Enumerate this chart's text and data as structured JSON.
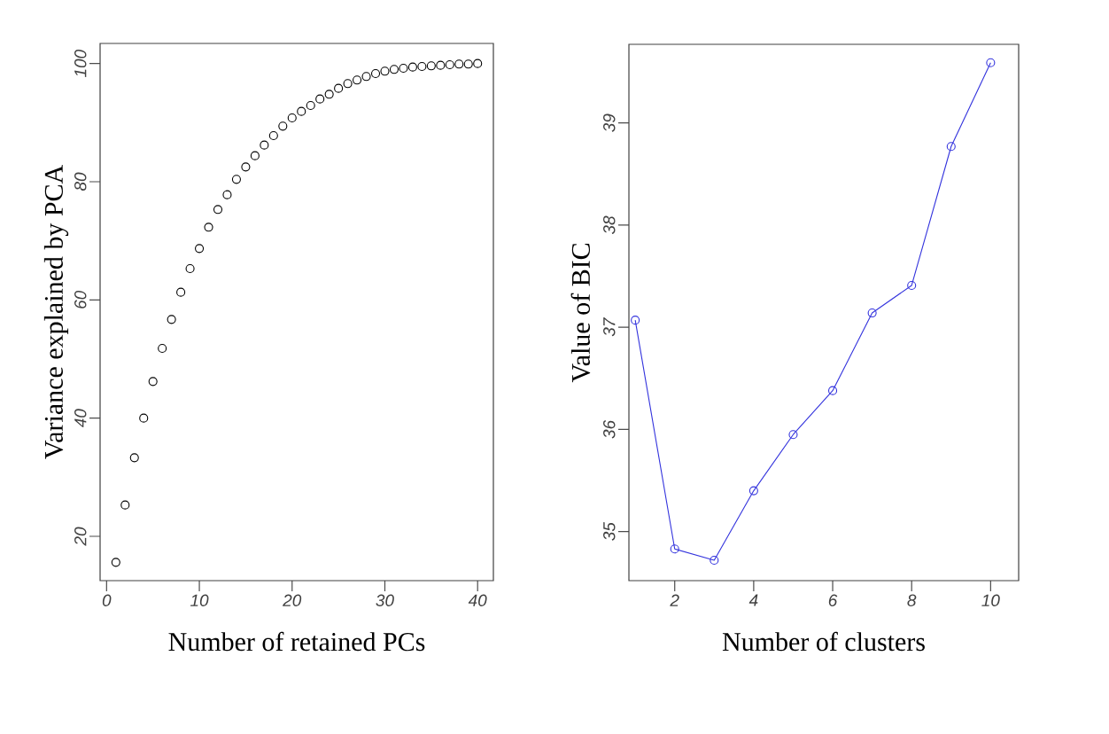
{
  "chart_data": [
    {
      "type": "scatter",
      "xlabel": "Number of retained PCs",
      "ylabel": "Variance explained by PCA",
      "x": [
        1,
        2,
        3,
        4,
        5,
        6,
        7,
        8,
        9,
        10,
        11,
        12,
        13,
        14,
        15,
        16,
        17,
        18,
        19,
        20,
        21,
        22,
        23,
        24,
        25,
        26,
        27,
        28,
        29,
        30,
        31,
        32,
        33,
        34,
        35,
        36,
        37,
        38,
        39,
        40
      ],
      "values": [
        15.6,
        25.3,
        33.3,
        40.0,
        46.2,
        51.8,
        56.7,
        61.3,
        65.3,
        68.7,
        72.3,
        75.3,
        77.8,
        80.4,
        82.5,
        84.4,
        86.2,
        87.8,
        89.4,
        90.8,
        91.9,
        92.9,
        94.0,
        94.8,
        95.8,
        96.6,
        97.2,
        97.8,
        98.3,
        98.7,
        99.0,
        99.2,
        99.4,
        99.5,
        99.6,
        99.7,
        99.8,
        99.9,
        99.9,
        100.0
      ],
      "color": "#000000",
      "marker": "circle",
      "grid": false,
      "xlim": [
        -0.7,
        41.7
      ],
      "ylim": [
        12.5,
        103.4
      ],
      "xticks": [
        0,
        10,
        20,
        30,
        40
      ],
      "yticks": [
        20,
        40,
        60,
        80,
        100
      ]
    },
    {
      "type": "line",
      "xlabel": "Number of clusters",
      "ylabel": "Value of BIC",
      "x": [
        1,
        2,
        3,
        4,
        5,
        6,
        7,
        8,
        9,
        10
      ],
      "values": [
        37.07,
        34.83,
        34.72,
        35.4,
        35.95,
        36.38,
        37.14,
        37.41,
        38.77,
        39.59
      ],
      "color": "#3333dd",
      "marker": "circle",
      "line_style": "solid",
      "grid": false,
      "xlim": [
        0.84,
        10.71
      ],
      "ylim": [
        34.52,
        39.77
      ],
      "xticks": [
        2,
        4,
        6,
        8,
        10
      ],
      "yticks": [
        35,
        36,
        37,
        38,
        39
      ]
    }
  ]
}
